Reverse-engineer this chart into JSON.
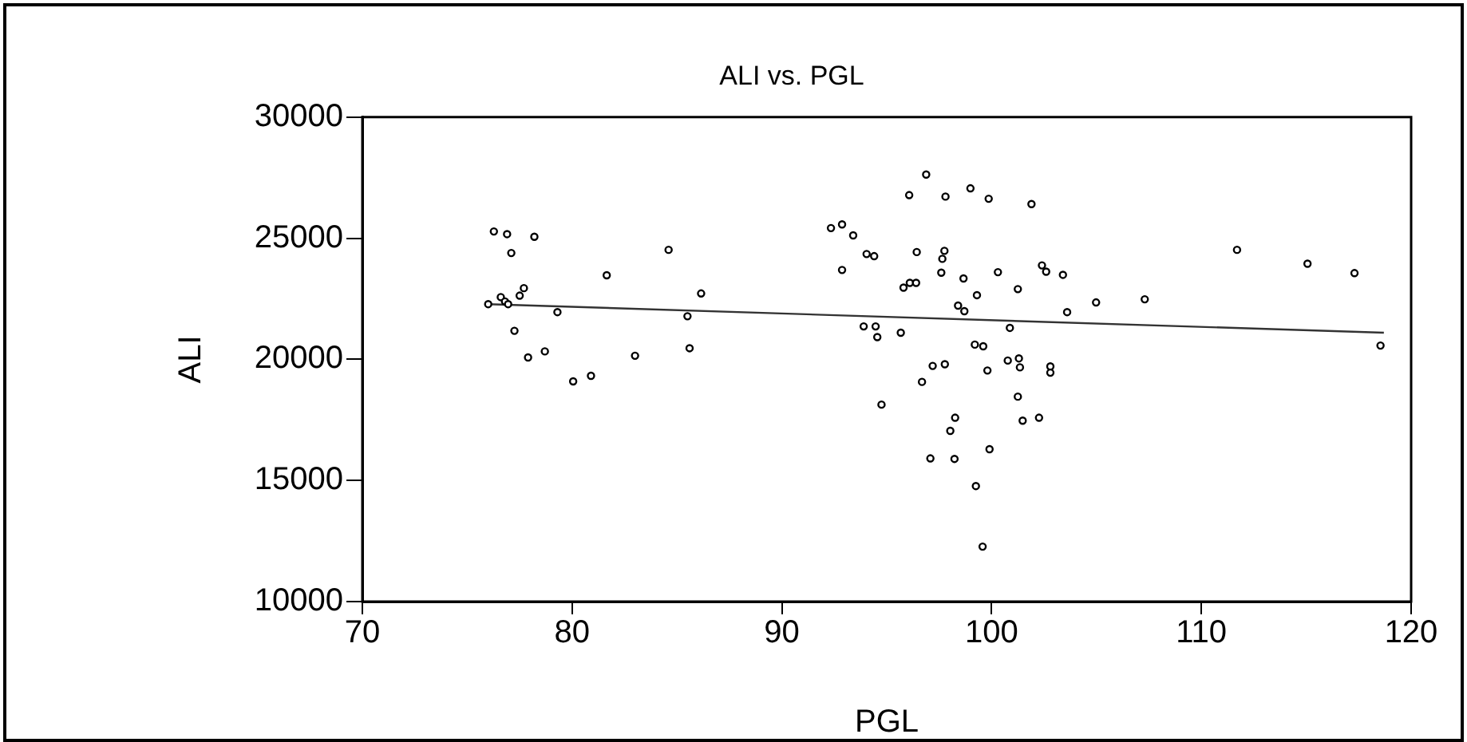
{
  "chart_data": {
    "type": "scatter",
    "title": "ALI vs. PGL",
    "xlabel": "PGL",
    "ylabel": "ALI",
    "xlim": [
      70,
      120
    ],
    "xticks": [
      70,
      80,
      90,
      100,
      110,
      120
    ],
    "ylim": [
      10000,
      30000
    ],
    "yticks": [
      10000,
      15000,
      20000,
      25000,
      30000
    ],
    "series": [
      {
        "color": "#000000",
        "marker": "circle",
        "x": [
          76.27,
          76.9,
          78.2,
          77.1,
          84.6,
          81.65,
          86.15,
          77.7,
          76.6,
          77.5,
          76.8,
          76.95,
          76.0,
          79.3,
          85.5,
          77.25,
          85.6,
          78.7,
          77.9,
          83.0,
          80.9,
          80.05,
          96.88,
          98.99,
          96.07,
          97.8,
          99.86,
          101.9,
          92.87,
          92.34,
          93.4,
          94.04,
          94.4,
          96.43,
          97.75,
          97.65,
          92.87,
          102.4,
          102.6,
          103.4,
          97.6,
          98.66,
          100.3,
          96.1,
          96.4,
          95.8,
          101.25,
          99.3,
          98.4,
          98.7,
          103.6,
          93.9,
          94.47,
          94.55,
          95.67,
          100.87,
          99.2,
          99.6,
          100.77,
          101.3,
          101.35,
          102.8,
          102.8,
          97.19,
          97.77,
          99.8,
          96.68,
          101.25,
          94.75,
          98.26,
          101.48,
          102.26,
          98.03,
          99.9,
          97.08,
          98.23,
          99.25,
          99.57,
          104.98,
          107.3,
          111.7,
          115.06,
          117.3,
          118.54
        ],
        "values": [
          25280,
          25170,
          25060,
          24390,
          24520,
          23470,
          22720,
          22940,
          22570,
          22630,
          22390,
          22280,
          22280,
          21950,
          21780,
          21180,
          20460,
          20330,
          20080,
          20150,
          19320,
          19090,
          27630,
          27060,
          26780,
          26720,
          26630,
          26410,
          25570,
          25420,
          25120,
          24350,
          24260,
          24430,
          24480,
          24150,
          23690,
          23880,
          23620,
          23490,
          23580,
          23340,
          23600,
          23160,
          23160,
          22960,
          22900,
          22650,
          22220,
          21990,
          21950,
          21360,
          21360,
          20920,
          21100,
          21300,
          20610,
          20540,
          19950,
          20040,
          19670,
          19710,
          19450,
          19730,
          19800,
          19540,
          19070,
          18460,
          18130,
          17590,
          17470,
          17590,
          17050,
          16290,
          15910,
          15890,
          14770,
          12270,
          22350,
          22480,
          24520,
          23950,
          23560,
          20570
        ]
      },
      {
        "type": "line",
        "marker": "none",
        "color": "#333333",
        "x": [
          76.0,
          118.7
        ],
        "values": [
          22280,
          21100
        ]
      }
    ]
  }
}
